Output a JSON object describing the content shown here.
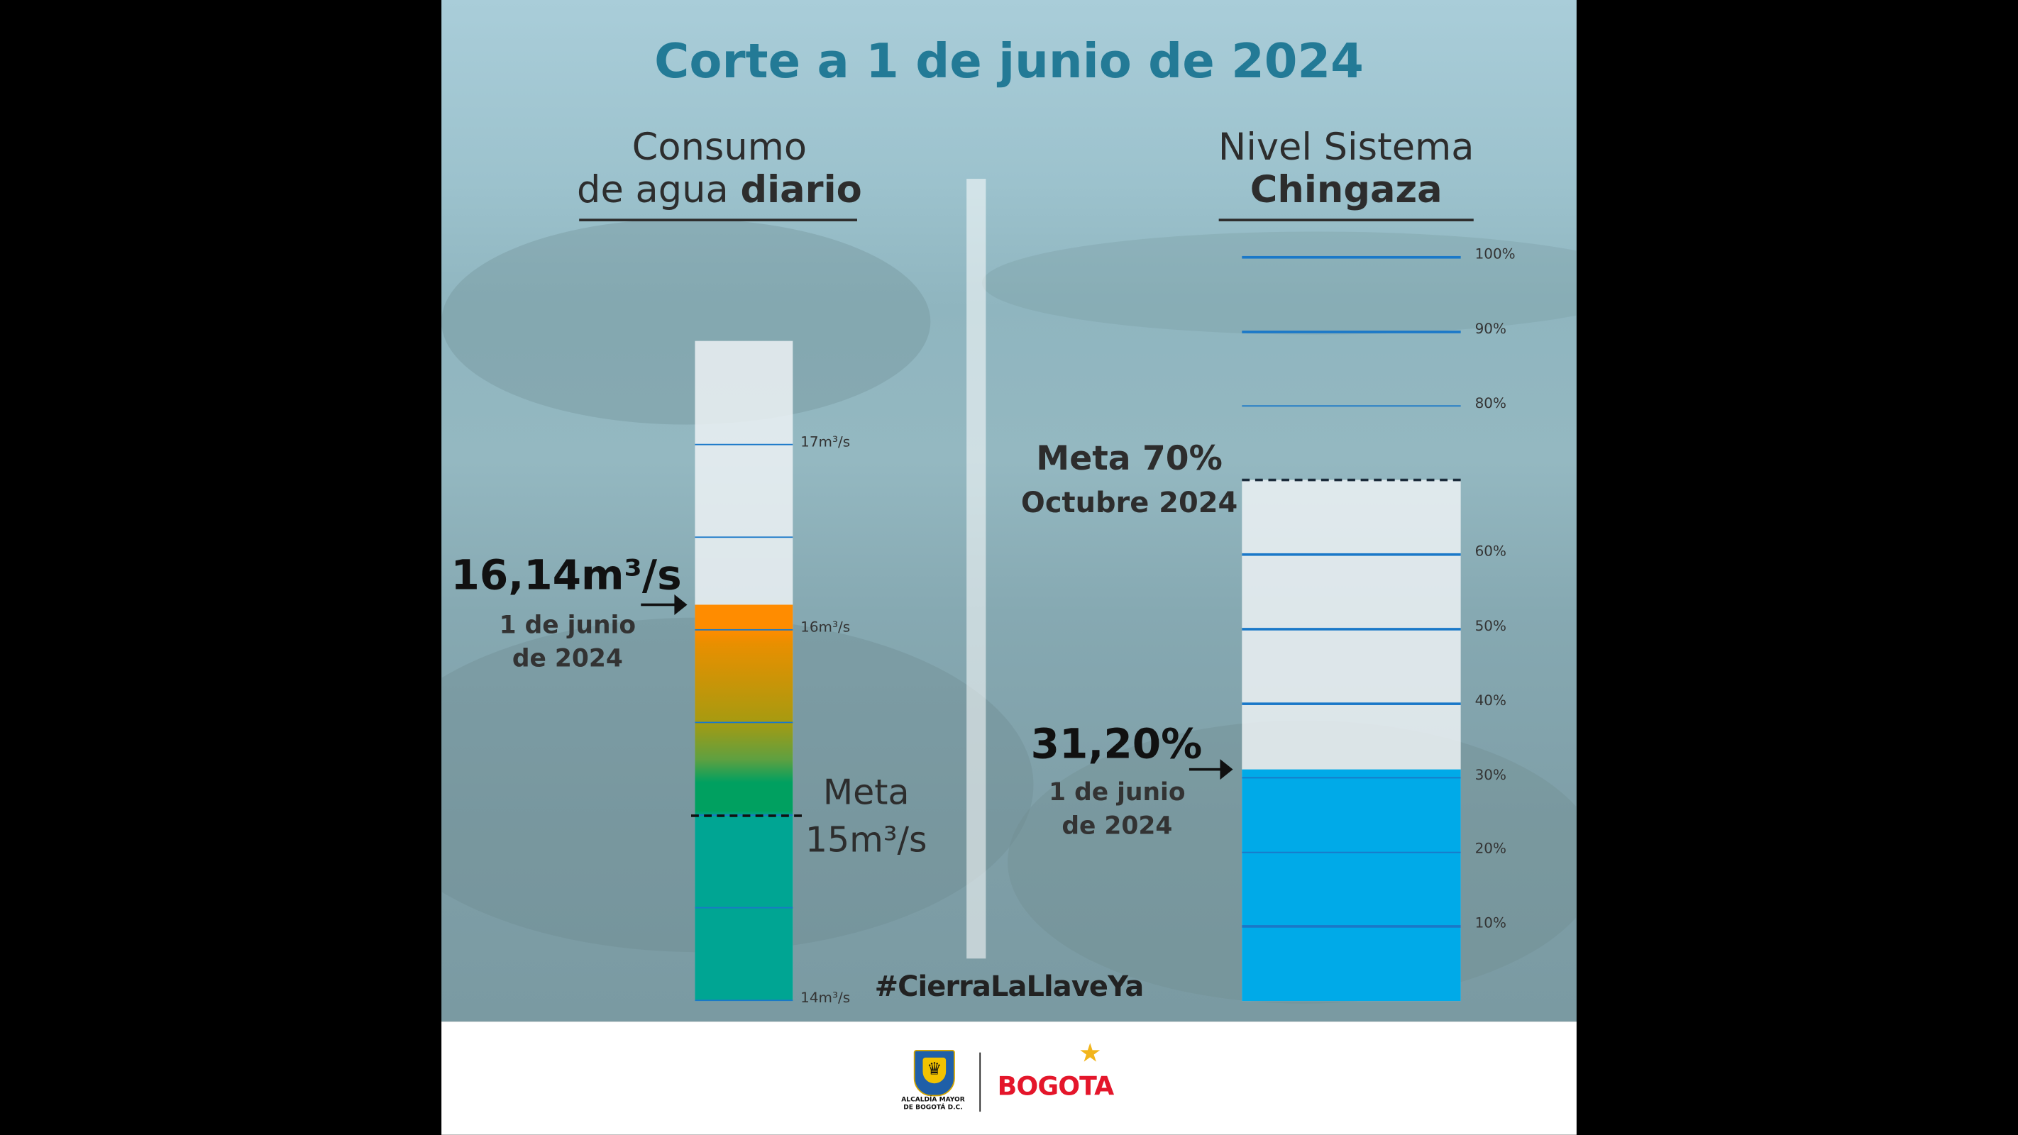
{
  "title": "Corte a 1 de junio de 2024",
  "hashtag": "#CierraLaLlaveYa",
  "footer": {
    "alcaldia_line1": "ALCALDÍA MAYOR",
    "alcaldia_line2": "DE BOGOTÁ D.C.",
    "brand": "BOGOTA"
  },
  "colors": {
    "title": "#237a96",
    "orange": "#ff8c00",
    "green": "#00a060",
    "teal": "#00a593",
    "blue": "#00aae8",
    "tickline": "#1a78c8"
  },
  "chart_data": [
    {
      "type": "bar",
      "heading_line1": "Consumo",
      "heading_line2_normal": "de agua ",
      "heading_line2_bold": "diario",
      "value": 16.14,
      "value_label": "16,14m³/s",
      "date_line1": "1 de junio",
      "date_line2": "de 2024",
      "goal": 15,
      "goal_label_line1": "Meta",
      "goal_label_line2": "15m³/s",
      "ylim": [
        14,
        17.56
      ],
      "ticks": [
        {
          "v": 17,
          "label": "17m³/s"
        },
        {
          "v": 16.5,
          "label": ""
        },
        {
          "v": 16,
          "label": "16m³/s"
        },
        {
          "v": 15.5,
          "label": ""
        },
        {
          "v": 15,
          "label": ""
        },
        {
          "v": 14.5,
          "label": ""
        },
        {
          "v": 14,
          "label": "14m³/s"
        }
      ]
    },
    {
      "type": "bar",
      "heading_line1": "Nivel Sistema",
      "heading_line2_bold": "Chingaza",
      "value": 31.2,
      "value_label": "31,20%",
      "date_line1": "1 de junio",
      "date_line2": "de 2024",
      "goal": 70,
      "goal_label_line1": "Meta 70%",
      "goal_label_line2": "Octubre 2024",
      "ylim": [
        0,
        100
      ],
      "ticks": [
        {
          "v": 100,
          "label": "100%"
        },
        {
          "v": 90,
          "label": "90%"
        },
        {
          "v": 80,
          "label": "80%"
        },
        {
          "v": 60,
          "label": "60%"
        },
        {
          "v": 50,
          "label": "50%"
        },
        {
          "v": 40,
          "label": "40%"
        },
        {
          "v": 30,
          "label": "30%"
        },
        {
          "v": 20,
          "label": "20%"
        },
        {
          "v": 10,
          "label": "10%"
        }
      ]
    }
  ]
}
